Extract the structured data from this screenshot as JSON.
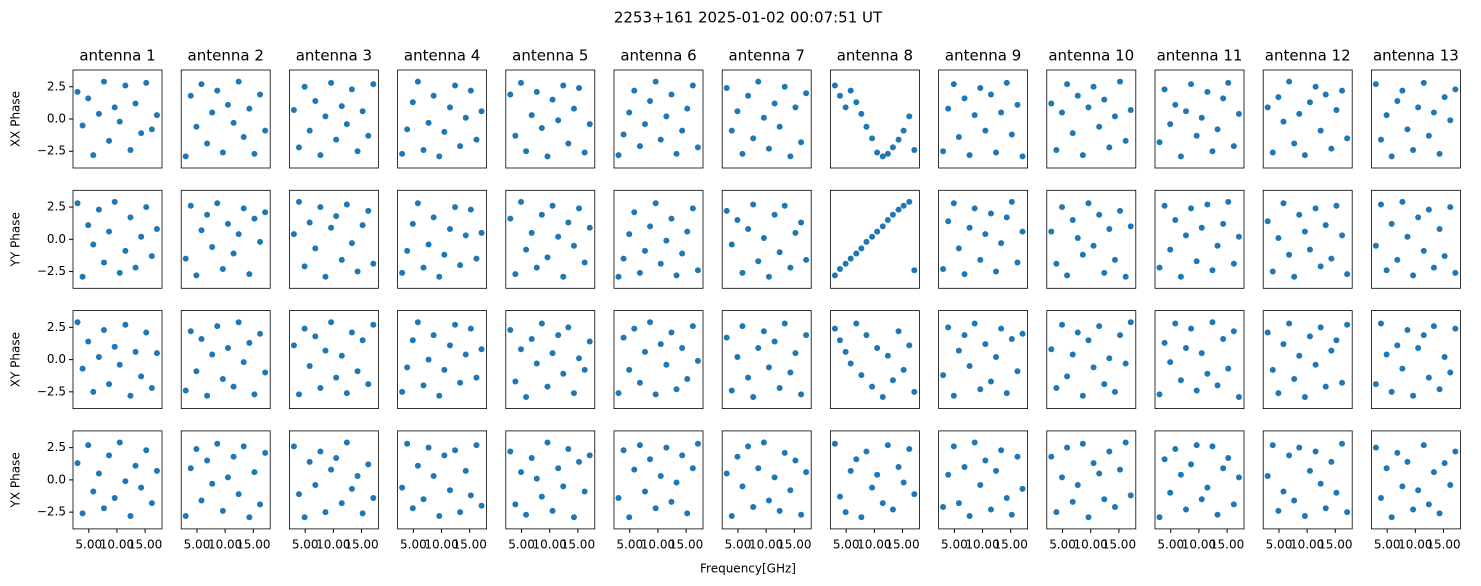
{
  "title": "2253+161 2025-01-02 00:07:51 UT",
  "x_label": "Frequency[GHz]",
  "chart_data": {
    "type": "scatter",
    "color": "#1f77b4",
    "columns": [
      "antenna 1",
      "antenna 2",
      "antenna 3",
      "antenna 4",
      "antenna 5",
      "antenna 6",
      "antenna 7",
      "antenna 8",
      "antenna 9",
      "antenna 10",
      "antenna 11",
      "antenna 12",
      "antenna 13"
    ],
    "x": [
      3.0,
      3.9,
      4.9,
      5.8,
      6.8,
      7.7,
      8.6,
      9.6,
      10.5,
      11.5,
      12.4,
      13.3,
      14.3,
      15.2,
      16.2,
      17.1
    ],
    "xlim": [
      2.2,
      18.0
    ],
    "xticks": [
      {
        "value": 5,
        "label": "5.00"
      },
      {
        "value": 10,
        "label": "10.00"
      },
      {
        "value": 15,
        "label": "15.00"
      }
    ],
    "ylim": [
      -3.8,
      3.8
    ],
    "yticks": [
      {
        "value": 2.5,
        "label": "2.5"
      },
      {
        "value": 0,
        "label": "0.0"
      },
      {
        "value": -2.5,
        "label": "−2.5"
      }
    ],
    "rows": [
      {
        "label": "XX Phase",
        "panels": [
          [
            2.1,
            -0.5,
            1.6,
            -2.8,
            0.4,
            2.9,
            -1.7,
            0.9,
            -0.2,
            2.6,
            -2.4,
            1.2,
            -1.1,
            2.8,
            -0.8,
            0.3
          ],
          [
            -2.9,
            1.8,
            -0.6,
            2.7,
            -1.9,
            0.5,
            2.2,
            -2.6,
            1.1,
            -0.3,
            2.9,
            -1.4,
            0.8,
            -2.7,
            1.9,
            -0.9
          ],
          [
            0.7,
            -2.2,
            2.5,
            -0.9,
            1.4,
            -2.8,
            0.2,
            2.8,
            -1.6,
            1.0,
            -0.4,
            2.3,
            -2.5,
            0.6,
            -1.3,
            2.7
          ],
          [
            -2.7,
            -0.8,
            1.3,
            2.9,
            -2.4,
            -0.3,
            1.8,
            -2.9,
            -1.0,
            0.9,
            2.6,
            -2.1,
            0.1,
            2.2,
            -1.6,
            0.6
          ],
          [
            1.9,
            -1.3,
            2.8,
            -2.5,
            0.3,
            2.1,
            -0.7,
            -2.9,
            1.5,
            -0.1,
            2.6,
            -1.9,
            0.8,
            2.4,
            -2.6,
            -0.4
          ],
          [
            -2.8,
            -1.2,
            0.5,
            2.2,
            -2.1,
            -0.4,
            1.4,
            2.9,
            -1.6,
            0.2,
            1.9,
            -2.7,
            -0.9,
            0.8,
            2.6,
            -2.2
          ],
          [
            2.4,
            -0.9,
            0.6,
            -2.7,
            1.8,
            -1.5,
            2.9,
            0.1,
            -2.3,
            1.2,
            -0.6,
            2.5,
            -2.9,
            0.9,
            -1.8,
            2.0
          ],
          [
            2.6,
            1.8,
            0.9,
            2.2,
            1.3,
            0.4,
            -0.6,
            -1.5,
            -2.6,
            -2.9,
            -2.7,
            -2.2,
            -1.6,
            -0.9,
            0.2,
            -2.4
          ],
          [
            -2.5,
            0.8,
            2.7,
            -1.4,
            1.6,
            -2.8,
            0.3,
            2.4,
            -0.9,
            1.9,
            -2.6,
            0.5,
            2.8,
            -1.2,
            1.1,
            -2.9
          ],
          [
            1.2,
            -2.4,
            0.5,
            2.7,
            -1.1,
            1.8,
            -2.8,
            0.9,
            2.5,
            -0.6,
            1.5,
            -2.2,
            0.2,
            2.9,
            -1.7,
            0.7
          ],
          [
            -1.8,
            2.3,
            -0.4,
            1.1,
            -2.9,
            0.6,
            2.7,
            -1.3,
            0.1,
            2.1,
            -2.5,
            -0.8,
            1.6,
            2.8,
            -2.1,
            0.4
          ],
          [
            0.9,
            -2.6,
            1.7,
            -0.2,
            2.9,
            -1.9,
            0.4,
            -2.8,
            1.3,
            2.5,
            -0.9,
            1.9,
            -2.3,
            0.7,
            2.2,
            -1.5
          ],
          [
            2.7,
            -1.6,
            0.3,
            -2.9,
            1.4,
            2.2,
            -0.8,
            -2.4,
            0.9,
            2.8,
            -1.3,
            0.5,
            -2.7,
            1.7,
            -0.1,
            2.3
          ]
        ]
      },
      {
        "label": "YY Phase",
        "panels": [
          [
            2.8,
            -2.9,
            1.1,
            -0.4,
            2.3,
            -1.8,
            0.6,
            2.9,
            -2.6,
            -0.9,
            1.7,
            -2.2,
            0.2,
            2.5,
            -1.3,
            0.8
          ],
          [
            -1.5,
            2.6,
            -2.8,
            0.7,
            1.9,
            -0.6,
            2.8,
            -2.3,
            1.2,
            -1.1,
            0.4,
            2.4,
            -2.7,
            1.6,
            -0.2,
            2.1
          ],
          [
            0.4,
            2.9,
            -2.1,
            1.3,
            -0.7,
            2.5,
            -2.9,
            0.9,
            1.8,
            -1.6,
            2.7,
            -0.3,
            -2.5,
            1.1,
            2.2,
            -1.9
          ],
          [
            -2.6,
            -0.9,
            1.2,
            2.8,
            -2.2,
            -0.4,
            1.7,
            -2.9,
            -1.2,
            0.8,
            2.5,
            -2.0,
            0.3,
            2.3,
            -1.5,
            0.5
          ],
          [
            1.6,
            -2.7,
            2.9,
            -0.8,
            0.5,
            -2.2,
            1.9,
            -1.4,
            2.6,
            0.2,
            -2.9,
            1.3,
            -0.5,
            2.4,
            -1.8,
            0.9
          ],
          [
            -2.9,
            -1.5,
            0.4,
            2.1,
            -2.6,
            -0.9,
            1.0,
            2.8,
            -1.9,
            -0.1,
            1.6,
            -2.8,
            -1.1,
            0.6,
            2.4,
            -2.4
          ],
          [
            2.2,
            -0.4,
            1.5,
            -2.6,
            0.8,
            2.7,
            -1.7,
            0.1,
            -2.9,
            1.9,
            -1.0,
            2.6,
            -2.2,
            0.5,
            1.3,
            -1.6
          ],
          [
            -2.8,
            -2.3,
            -1.9,
            -1.5,
            -1.1,
            -0.7,
            -0.2,
            0.2,
            0.6,
            1.0,
            1.5,
            1.9,
            2.3,
            2.6,
            2.9,
            -2.4
          ],
          [
            -2.3,
            1.4,
            2.8,
            -0.7,
            -2.7,
            0.9,
            2.4,
            -1.6,
            0.4,
            2.0,
            -2.5,
            -0.3,
            1.7,
            2.9,
            -1.8,
            0.6
          ],
          [
            0.6,
            -1.9,
            2.5,
            -2.8,
            1.5,
            0.1,
            -1.2,
            2.8,
            -0.5,
            1.9,
            -2.6,
            0.8,
            -1.6,
            2.2,
            -2.9,
            1.0
          ],
          [
            -2.2,
            2.6,
            -0.8,
            1.5,
            -2.9,
            0.3,
            2.4,
            -1.7,
            0.9,
            2.7,
            -2.4,
            -0.5,
            1.2,
            2.9,
            -1.9,
            0.2
          ],
          [
            1.4,
            -2.5,
            0.1,
            2.8,
            -1.2,
            -2.9,
            1.9,
            0.6,
            -0.8,
            2.4,
            -2.1,
            1.1,
            -1.5,
            2.6,
            0.3,
            -2.7
          ],
          [
            -0.5,
            2.7,
            -2.4,
            1.2,
            -1.6,
            2.9,
            0.2,
            -2.8,
            1.7,
            -0.9,
            2.3,
            -2.2,
            0.8,
            -1.3,
            2.5,
            -2.6
          ]
        ]
      },
      {
        "label": "XY Phase",
        "panels": [
          [
            2.9,
            -0.7,
            1.4,
            -2.5,
            0.2,
            2.3,
            -1.9,
            1.0,
            -0.4,
            2.7,
            -2.8,
            0.6,
            -1.3,
            2.1,
            -2.2,
            0.5
          ],
          [
            -2.4,
            2.2,
            -0.9,
            1.6,
            -2.8,
            0.4,
            2.6,
            -1.5,
            0.9,
            -2.1,
            2.9,
            -0.2,
            1.3,
            -2.7,
            2.0,
            -1.0
          ],
          [
            1.1,
            -2.7,
            2.4,
            -0.5,
            1.8,
            -2.2,
            0.7,
            2.9,
            -1.4,
            0.3,
            -2.6,
            2.1,
            -0.9,
            1.5,
            -1.9,
            2.7
          ],
          [
            -2.5,
            -0.6,
            1.5,
            2.9,
            -2.0,
            0.0,
            1.9,
            -2.8,
            -0.8,
            1.1,
            2.7,
            -1.8,
            0.4,
            2.4,
            -1.4,
            0.8
          ],
          [
            2.3,
            -1.7,
            0.8,
            -2.9,
            1.6,
            -0.3,
            2.8,
            -2.1,
            0.5,
            1.9,
            -1.1,
            2.5,
            -2.6,
            0.1,
            -0.8,
            1.4
          ],
          [
            -2.6,
            1.7,
            -0.8,
            2.4,
            -1.8,
            0.6,
            2.9,
            -2.7,
            1.2,
            -0.4,
            2.1,
            -2.3,
            0.9,
            -1.5,
            2.6,
            -0.1
          ],
          [
            1.7,
            -2.4,
            0.2,
            2.6,
            -1.4,
            -2.9,
            0.9,
            2.2,
            -0.6,
            1.4,
            -2.2,
            2.8,
            -1.0,
            0.5,
            -2.7,
            1.9
          ],
          [
            2.4,
            1.5,
            0.6,
            -0.3,
            2.8,
            -1.2,
            1.9,
            -2.1,
            0.9,
            -2.9,
            0.3,
            -1.6,
            2.2,
            -0.8,
            1.1,
            -2.5
          ],
          [
            -1.2,
            2.5,
            -2.8,
            0.7,
            1.9,
            -0.5,
            2.8,
            -2.3,
            1.2,
            -1.7,
            0.2,
            2.4,
            -2.6,
            1.6,
            -0.9,
            2.0
          ],
          [
            0.8,
            -2.2,
            2.7,
            -1.3,
            0.4,
            2.1,
            -2.8,
            1.5,
            -0.6,
            2.6,
            -1.9,
            0.1,
            -2.5,
            1.9,
            -0.3,
            2.9
          ],
          [
            -2.7,
            1.3,
            -0.2,
            2.8,
            -1.6,
            0.9,
            2.4,
            -2.4,
            0.5,
            -1.1,
            2.9,
            -2.0,
            1.6,
            -0.7,
            2.2,
            -2.9
          ],
          [
            2.1,
            -0.8,
            -2.6,
            1.2,
            2.8,
            -1.5,
            0.3,
            -2.9,
            1.8,
            -0.4,
            2.5,
            -2.1,
            0.7,
            1.5,
            -1.8,
            2.7
          ],
          [
            -1.9,
            2.8,
            0.4,
            -2.5,
            1.1,
            -0.7,
            2.3,
            -2.8,
            0.9,
            1.9,
            -1.4,
            2.6,
            -2.3,
            0.2,
            -1.0,
            2.4
          ]
        ]
      },
      {
        "label": "YX Phase",
        "panels": [
          [
            1.3,
            -2.6,
            2.7,
            -0.9,
            0.5,
            -2.2,
            1.9,
            -1.4,
            2.9,
            -0.1,
            -2.8,
            1.1,
            -0.6,
            2.3,
            -1.8,
            0.7
          ],
          [
            -2.8,
            0.9,
            2.4,
            -1.6,
            1.5,
            -0.3,
            2.8,
            -2.4,
            0.2,
            1.8,
            -1.1,
            2.6,
            -2.9,
            0.6,
            -1.9,
            2.1
          ],
          [
            2.6,
            -1.1,
            -2.9,
            1.4,
            -0.4,
            2.2,
            -2.5,
            0.8,
            1.7,
            -1.8,
            2.9,
            -0.7,
            0.3,
            -2.6,
            1.2,
            -1.4
          ],
          [
            -0.6,
            2.8,
            -2.2,
            1.1,
            -1.5,
            2.5,
            0.3,
            -2.8,
            1.9,
            -0.8,
            2.3,
            -2.5,
            0.7,
            -1.2,
            2.7,
            -2.0
          ],
          [
            2.2,
            -1.9,
            0.6,
            -2.7,
            1.7,
            0.1,
            -1.3,
            2.9,
            -2.4,
            0.9,
            -0.5,
            2.4,
            -2.9,
            1.4,
            -0.9,
            1.9
          ],
          [
            -1.4,
            2.3,
            -2.9,
            0.8,
            2.7,
            -0.9,
            1.6,
            -2.2,
            0.3,
            2.5,
            -1.7,
            -0.2,
            1.9,
            -2.6,
            0.9,
            2.8
          ],
          [
            0.5,
            -2.8,
            1.8,
            -0.5,
            2.6,
            -2.1,
            0.9,
            2.9,
            -1.6,
            0.2,
            -2.4,
            2.1,
            -0.8,
            1.5,
            -2.7,
            0.6
          ],
          [
            2.8,
            -1.3,
            -2.5,
            0.7,
            1.6,
            -2.9,
            2.2,
            -0.6,
            0.4,
            -1.8,
            2.7,
            -2.3,
            1.0,
            -0.2,
            2.4,
            -1.1
          ],
          [
            -2.1,
            0.4,
            2.6,
            -1.8,
            1.0,
            -2.8,
            2.9,
            -0.4,
            1.5,
            -2.3,
            0.7,
            2.3,
            -1.4,
            -2.7,
            1.8,
            -0.7
          ],
          [
            1.8,
            -2.5,
            0.2,
            2.5,
            -1.7,
            -0.4,
            2.8,
            -2.9,
            1.3,
            0.5,
            -1.5,
            2.2,
            -2.1,
            0.8,
            2.9,
            -1.2
          ],
          [
            -2.9,
            1.6,
            -1.0,
            2.4,
            0.4,
            -2.3,
            1.2,
            2.7,
            -1.5,
            -0.6,
            2.6,
            -2.7,
            0.9,
            1.7,
            -1.9,
            0.2
          ],
          [
            0.3,
            2.7,
            -2.4,
            -0.9,
            1.9,
            -1.6,
            2.5,
            -2.8,
            0.7,
            2.2,
            -0.3,
            -2.2,
            1.4,
            -1.0,
            2.8,
            -2.5
          ],
          [
            2.5,
            -1.4,
            0.9,
            -2.9,
            2.1,
            -0.5,
            1.4,
            -2.3,
            -0.8,
            2.7,
            -1.9,
            0.6,
            -2.6,
            1.3,
            -0.4,
            2.2
          ]
        ]
      }
    ]
  }
}
